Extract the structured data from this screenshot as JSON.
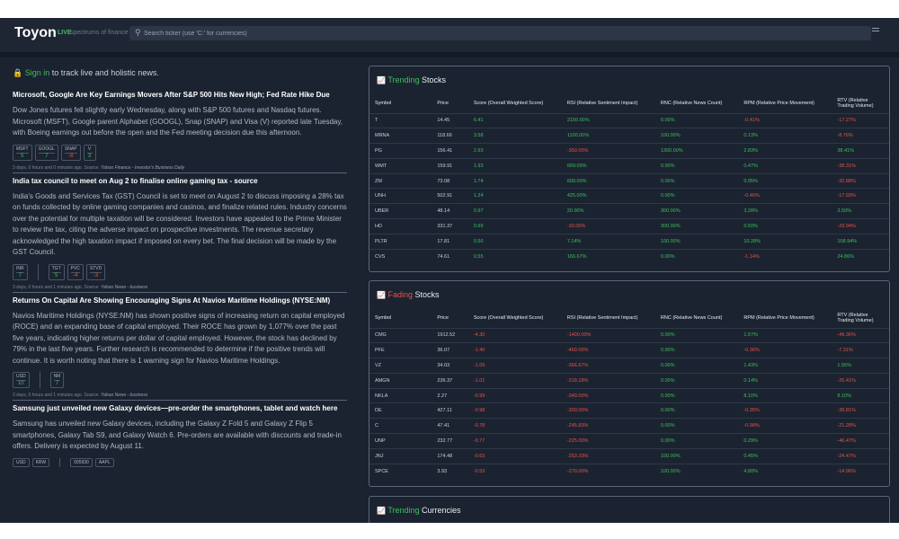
{
  "header": {
    "logo": "Toyon",
    "live": "LIVE",
    "tagline": "spectrums of finance",
    "search_placeholder": "Search ticker (use 'C:' for currencies)"
  },
  "signin": {
    "link": "Sign in",
    "rest": " to track live and holistic news."
  },
  "news": [
    {
      "title": "Microsoft, Google Are Key Earnings Movers After S&P 500 Hits New High; Fed Rate Hike Due",
      "body": "Dow Jones futures fell slightly early Wednesday, along with S&P 500 futures and Nasdaq futures. Microsoft (MSFT), Google parent Alphabet (GOOGL), Snap (SNAP) and Visa (V) reported late Tuesday, with Boeing earnings out before the open and the Fed meeting decision due this afternoon.",
      "ticker_groups": [
        [
          {
            "sym": "MSFT",
            "val": "5"
          },
          {
            "sym": "GOOGL",
            "val": "7"
          },
          {
            "sym": "SNAP",
            "val": "-8"
          },
          {
            "sym": "V",
            "val": "3"
          }
        ]
      ],
      "meta": "3 days, 0 hours and 0 minutes ago. Source: ",
      "source": "Yahoo Finance - Investor's Business Daily"
    },
    {
      "title": "India tax council to meet on Aug 2 to finalise online gaming tax - source",
      "body": "India's Goods and Services Tax (GST) Council is set to meet on August 2 to discuss imposing a 28% tax on funds collected by online gaming companies and casinos, and finalize related rules. Industry concerns over the potential for multiple taxation will be considered. Investors have appealed to the Prime Minister to review the tax, citing the adverse impact on prospective investments. The revenue secretary acknowledged the high taxation impact if imposed on every bet. The final decision will be made by the GST Council.",
      "ticker_groups": [
        [
          {
            "sym": "INR",
            "val": "7"
          }
        ],
        [
          {
            "sym": "TGT",
            "val": "5"
          },
          {
            "sym": "PVC",
            "val": "-4"
          },
          {
            "sym": "STVD",
            "val": "-3"
          }
        ]
      ],
      "meta": "3 days, 0 hours and 1 minutes ago. Source: ",
      "source": "Yahoo News - business"
    },
    {
      "title": "Returns On Capital Are Showing Encouraging Signs At Navios Maritime Holdings (NYSE:NM)",
      "body": "Navios Maritime Holdings (NYSE:NM) has shown positive signs of increasing return on capital employed (ROCE) and an expanding base of capital employed. Their ROCE has grown by 1,077% over the past five years, indicating higher returns per dollar of capital employed. However, the stock has declined by 79% in the last five years. Further research is recommended to determine if the positive trends will continue. It is worth noting that there is 1 warning sign for Navios Maritime Holdings.",
      "ticker_groups": [
        [
          {
            "sym": "USD",
            "val": "10"
          }
        ],
        [
          {
            "sym": "NM",
            "val": "7"
          }
        ]
      ],
      "meta": "3 days, 0 hours and 1 minutes ago. Source: ",
      "source": "Yahoo News - business"
    },
    {
      "title": "Samsung just unveiled new Galaxy devices—pre-order the smartphones, tablet and watch here",
      "body": "Samsung has unveiled new Galaxy devices, including the Galaxy Z Fold 5 and Galaxy Z Flip 5 smartphones, Galaxy Tab S9, and Galaxy Watch 6. Pre-orders are available with discounts and trade-in offers. Delivery is expected by August 11.",
      "ticker_groups": [
        [
          {
            "sym": "USD",
            "val": ""
          },
          {
            "sym": "KRW",
            "val": ""
          }
        ],
        [
          {
            "sym": "005930",
            "val": ""
          },
          {
            "sym": "AAPL",
            "val": ""
          }
        ]
      ],
      "meta": "",
      "source": ""
    }
  ],
  "trending": {
    "icon": "chart-icon",
    "word": "Trending",
    "rest": " Stocks",
    "headers": [
      "Symbol",
      "Price",
      "Score (Overall Weighted Score)",
      "RSI (Relative Sentiment Impact)",
      "RNC (Relative News Count)",
      "RPM (Relative Price Movement)",
      "RTV (Relative Trading Volume)"
    ],
    "rows": [
      [
        "T",
        "14.45",
        "6.41",
        "2150.00%",
        "0.00%",
        "-0.41%",
        "-17.27%"
      ],
      [
        "MRNA",
        "118.66",
        "3.58",
        "1100.00%",
        "100.00%",
        "0.13%",
        "-8.76%"
      ],
      [
        "PG",
        "156.41",
        "2.93",
        "-350.00%",
        "1300.00%",
        "2.83%",
        "38.41%"
      ],
      [
        "WMT",
        "159.91",
        "1.93",
        "669.09%",
        "0.00%",
        "0.47%",
        "-38.31%"
      ],
      [
        "ZM",
        "73.08",
        "1.74",
        "600.00%",
        "0.00%",
        "0.95%",
        "-32.88%"
      ],
      [
        "UNH",
        "502.91",
        "1.24",
        "425.00%",
        "0.00%",
        "-0.46%",
        "-17.93%"
      ],
      [
        "UBER",
        "48.14",
        "0.97",
        "20.00%",
        "300.00%",
        "3.28%",
        "3.50%"
      ],
      [
        "HD",
        "331.37",
        "0.69",
        "-30.00%",
        "300.00%",
        "0.50%",
        "-29.94%"
      ],
      [
        "PLTR",
        "17.81",
        "0.56",
        "7.14%",
        "100.00%",
        "10.28%",
        "108.94%"
      ],
      [
        "CVS",
        "74.61",
        "0.55",
        "166.67%",
        "0.00%",
        "-1.14%",
        "24.86%"
      ]
    ]
  },
  "fading": {
    "icon": "chart-icon",
    "word": "Fading",
    "rest": " Stocks",
    "headers": [
      "Symbol",
      "Price",
      "Score (Overall Weighted Score)",
      "RSI (Relative Sentiment Impact)",
      "RNC (Relative News Count)",
      "RPM (Relative Price Movement)",
      "RTV (Relative Trading Volume)"
    ],
    "rows": [
      [
        "CMG",
        "1912.52",
        "-4.30",
        "-1400.00%",
        "0.00%",
        "1.57%",
        "-49.36%"
      ],
      [
        "PFE",
        "36.07",
        "-1.40",
        "-460.00%",
        "0.00%",
        "-0.36%",
        "-7.31%"
      ],
      [
        "VZ",
        "34.03",
        "-1.09",
        "-366.67%",
        "0.00%",
        "1.43%",
        "1.55%"
      ],
      [
        "AMGN",
        "236.37",
        "-1.01",
        "-318.18%",
        "0.00%",
        "0.14%",
        "-26.41%"
      ],
      [
        "NKLA",
        "2.27",
        "-0.99",
        "-340.00%",
        "0.00%",
        "8.10%",
        "8.10%"
      ],
      [
        "DE",
        "427.11",
        "-0.98",
        "-300.00%",
        "0.00%",
        "-0.35%",
        "-39.81%"
      ],
      [
        "C",
        "47.41",
        "-0.78",
        "-245.83%",
        "0.00%",
        "-0.98%",
        "-21.28%"
      ],
      [
        "UNP",
        "232.77",
        "-0.77",
        "-225.00%",
        "0.00%",
        "0.29%",
        "-46.47%"
      ],
      [
        "JNJ",
        "174.48",
        "-0.63",
        "-253.33%",
        "100.00%",
        "0.45%",
        "-24.47%"
      ],
      [
        "SPCE",
        "3.93",
        "-0.53",
        "-270.00%",
        "100.00%",
        "4.80%",
        "-14.96%"
      ]
    ]
  },
  "currencies": {
    "icon": "chart-icon",
    "word": "Trending",
    "rest": " Currencies"
  },
  "colors": {
    "positive": "#3fbf5f",
    "negative": "#e5534b",
    "background": "#1b2330"
  }
}
